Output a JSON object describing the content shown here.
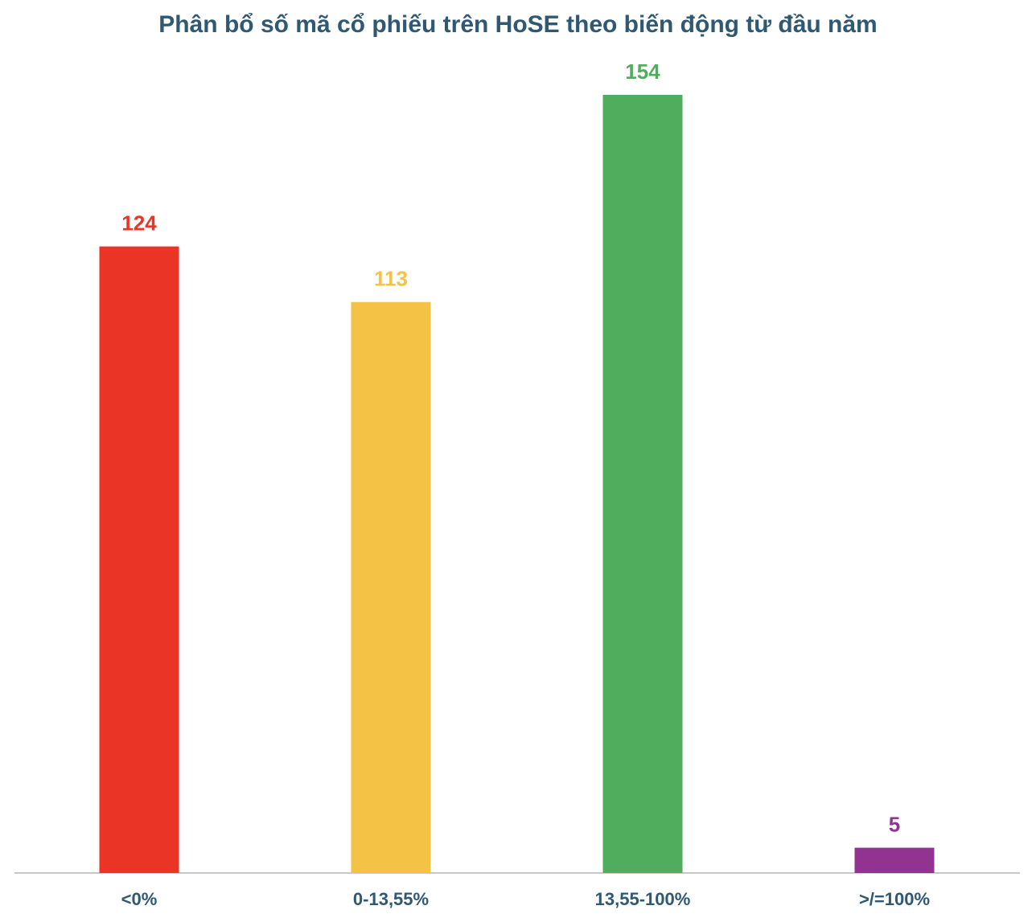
{
  "chart_data": {
    "type": "bar",
    "title": "Phân bổ số mã cổ phiếu trên HoSE theo biến động từ đầu năm",
    "categories": [
      "<0%",
      "0-13,55%",
      "13,55-100%",
      ">/=100%"
    ],
    "values": [
      124,
      113,
      154,
      5
    ],
    "colors": [
      "#e93426",
      "#f4c244",
      "#51ad5e",
      "#923392"
    ],
    "data_labels": [
      "124",
      "113",
      "154",
      "5"
    ],
    "ylim": [
      0,
      154
    ],
    "grid": false,
    "legend": "none",
    "xlabel": "",
    "ylabel": ""
  }
}
